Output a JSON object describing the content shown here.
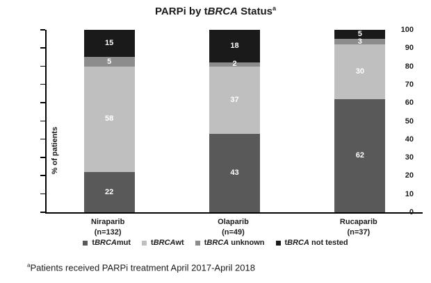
{
  "chart_data": {
    "type": "bar",
    "stacked": true,
    "title": "PARPi by tBRCA Status",
    "title_superscript": "a",
    "ylabel": "% of patients",
    "ylim": [
      0,
      100
    ],
    "ytick_step": 10,
    "grid": false,
    "legend_position": "bottom",
    "categories": [
      {
        "label": "Niraparib",
        "n_label": "(n=132)"
      },
      {
        "label": "Olaparib",
        "n_label": "(n=49)"
      },
      {
        "label": "Rucaparib",
        "n_label": "(n=37)"
      }
    ],
    "series": [
      {
        "name": "tBRCAmut",
        "color": "#595959",
        "values": [
          22,
          43,
          62
        ]
      },
      {
        "name": "tBRCAwt",
        "color": "#bfbfbf",
        "values": [
          58,
          37,
          30
        ]
      },
      {
        "name": "tBRCA unknown",
        "color": "#8c8c8c",
        "values": [
          5,
          2,
          3
        ]
      },
      {
        "name": "tBRCA not tested",
        "color": "#1a1a1a",
        "values": [
          15,
          18,
          5
        ]
      }
    ],
    "value_label_color": "#ffffff",
    "axis_color": "#000000"
  },
  "footnote": {
    "superscript": "a",
    "text": "Patients received PARPi treatment April 2017-April 2018"
  }
}
